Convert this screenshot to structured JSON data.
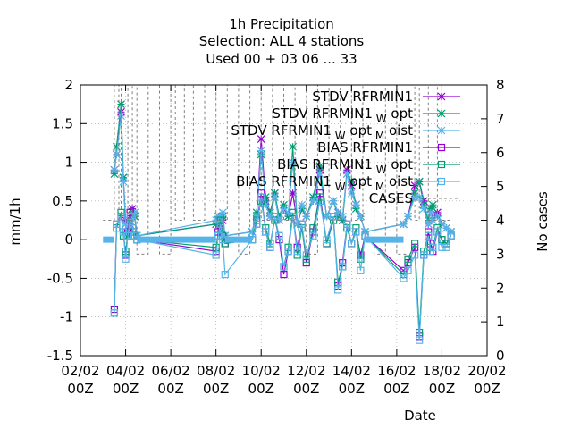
{
  "chart_data": {
    "type": "line",
    "title_lines": [
      "1h Precipitation",
      "Selection: ALL      4 stations",
      "Used  00 + 03 06 ... 33"
    ],
    "xlabel": "Date",
    "ylabel": "mm/1h",
    "y2label": "No cases",
    "xlim": [
      0,
      18
    ],
    "ylim": [
      -1.5,
      2
    ],
    "y2lim": [
      0,
      8
    ],
    "xticks": [
      {
        "v": 0,
        "l1": "02/02",
        "l2": "00Z"
      },
      {
        "v": 2,
        "l1": "04/02",
        "l2": "00Z"
      },
      {
        "v": 4,
        "l1": "06/02",
        "l2": "00Z"
      },
      {
        "v": 6,
        "l1": "08/02",
        "l2": "00Z"
      },
      {
        "v": 8,
        "l1": "10/02",
        "l2": "00Z"
      },
      {
        "v": 10,
        "l1": "12/02",
        "l2": "00Z"
      },
      {
        "v": 12,
        "l1": "14/02",
        "l2": "00Z"
      },
      {
        "v": 14,
        "l1": "16/02",
        "l2": "00Z"
      },
      {
        "v": 16,
        "l1": "18/02",
        "l2": "00Z"
      },
      {
        "v": 18,
        "l1": "20/02",
        "l2": "00Z"
      }
    ],
    "yticks": [
      {
        "v": -1.5,
        "l": "-1.5"
      },
      {
        "v": -1,
        "l": "-1"
      },
      {
        "v": -0.5,
        "l": "-0.5"
      },
      {
        "v": 0,
        "l": "0"
      },
      {
        "v": 0.5,
        "l": "0.5"
      },
      {
        "v": 1,
        "l": "1"
      },
      {
        "v": 1.5,
        "l": "1.5"
      },
      {
        "v": 2,
        "l": "2"
      }
    ],
    "y2ticks": [
      {
        "v": 0,
        "l": "0"
      },
      {
        "v": 1,
        "l": "1"
      },
      {
        "v": 2,
        "l": "2"
      },
      {
        "v": 3,
        "l": "3"
      },
      {
        "v": 4,
        "l": "4"
      },
      {
        "v": 5,
        "l": "5"
      },
      {
        "v": 6,
        "l": "6"
      },
      {
        "v": 7,
        "l": "7"
      },
      {
        "v": 8,
        "l": "8"
      }
    ],
    "legend_position": "top-right",
    "series": [
      {
        "name": "STDV RFRMIN1",
        "legend": [
          [
            "STDV RFRMIN1",
            ""
          ]
        ],
        "color": "#9400d3",
        "marker": "star",
        "axis": "y",
        "x": [
          1.5,
          1.6,
          1.8,
          1.9,
          2.0,
          2.1,
          2.2,
          2.3,
          2.4,
          2.5,
          6.0,
          6.1,
          6.2,
          6.3,
          6.4,
          7.6,
          7.8,
          8.0,
          8.2,
          8.4,
          8.6,
          8.8,
          9.0,
          9.2,
          9.4,
          9.6,
          9.8,
          10.0,
          10.3,
          10.6,
          10.9,
          11.2,
          11.4,
          11.6,
          11.8,
          12.0,
          12.2,
          12.4,
          12.6,
          14.3,
          14.5,
          14.8,
          15.0,
          15.2,
          15.4,
          15.5,
          15.6,
          15.8,
          16.0,
          16.2,
          16.4
        ],
        "y": [
          0.9,
          1.1,
          1.65,
          0.8,
          0.25,
          0.1,
          0.2,
          0.4,
          0.3,
          0.05,
          0.2,
          0.3,
          0.15,
          0.25,
          0.05,
          0.1,
          0.3,
          1.3,
          0.5,
          0.3,
          0.6,
          0.25,
          0.4,
          0.3,
          0.6,
          0.2,
          0.4,
          0.3,
          0.5,
          0.9,
          0.3,
          0.5,
          0.35,
          0.25,
          0.9,
          0.7,
          0.45,
          0.3,
          0.1,
          0.2,
          0.3,
          0.7,
          0.75,
          0.5,
          0.2,
          0.4,
          0.25,
          0.35,
          0.2,
          0.15,
          0.1
        ]
      },
      {
        "name": "STDV RFRMIN1 W opt",
        "legend": [
          [
            "STDV RFRMIN1",
            ""
          ],
          [
            " W",
            "sub"
          ],
          [
            " opt",
            ""
          ]
        ],
        "color": "#009e73",
        "marker": "star",
        "axis": "y",
        "x": [
          1.5,
          1.6,
          1.8,
          1.9,
          2.0,
          2.1,
          2.2,
          2.3,
          2.4,
          2.5,
          6.0,
          6.1,
          6.2,
          6.3,
          6.4,
          7.6,
          7.8,
          8.0,
          8.2,
          8.4,
          8.6,
          8.8,
          9.0,
          9.2,
          9.4,
          9.6,
          9.8,
          10.0,
          10.3,
          10.6,
          10.9,
          11.2,
          11.4,
          11.6,
          11.8,
          12.0,
          12.2,
          12.4,
          12.6,
          14.3,
          14.5,
          14.8,
          15.0,
          15.2,
          15.4,
          15.5,
          15.6,
          15.8,
          16.0,
          16.2,
          16.4
        ],
        "y": [
          0.85,
          1.2,
          1.75,
          0.8,
          0.2,
          0.05,
          0.25,
          0.35,
          0.3,
          0.05,
          0.2,
          0.25,
          0.1,
          0.3,
          0.05,
          0.1,
          0.35,
          1.1,
          0.55,
          0.35,
          0.6,
          0.3,
          0.45,
          0.3,
          1.2,
          0.2,
          0.4,
          0.3,
          0.55,
          0.95,
          0.3,
          0.5,
          0.3,
          0.25,
          0.85,
          0.75,
          0.4,
          0.3,
          0.1,
          0.2,
          0.3,
          0.6,
          0.75,
          0.45,
          0.25,
          0.4,
          0.45,
          0.3,
          0.2,
          0.15,
          0.1
        ]
      },
      {
        "name": "STDV RFRMIN1 W opt M oist",
        "legend": [
          [
            "STDV RFRMIN1",
            ""
          ],
          [
            " W",
            "sub"
          ],
          [
            " opt",
            ""
          ],
          [
            " M",
            "sub"
          ],
          [
            " oist",
            ""
          ]
        ],
        "color": "#56b4e9",
        "marker": "star",
        "axis": "y",
        "x": [
          1.5,
          1.6,
          1.8,
          1.9,
          2.0,
          2.1,
          2.2,
          2.3,
          2.4,
          2.5,
          6.0,
          6.1,
          6.2,
          6.3,
          6.4,
          7.6,
          7.8,
          8.0,
          8.2,
          8.4,
          8.6,
          8.8,
          9.0,
          9.2,
          9.4,
          9.6,
          9.8,
          10.0,
          10.3,
          10.6,
          10.9,
          11.2,
          11.4,
          11.6,
          11.8,
          12.0,
          12.2,
          12.4,
          12.6,
          14.3,
          14.5,
          14.8,
          15.0,
          15.2,
          15.4,
          15.5,
          15.6,
          15.8,
          16.0,
          16.2,
          16.4
        ],
        "y": [
          0.9,
          1.1,
          1.6,
          0.75,
          0.2,
          0.1,
          0.2,
          0.3,
          0.35,
          0.05,
          0.25,
          0.3,
          0.1,
          0.35,
          0.05,
          0.1,
          0.3,
          1.15,
          0.45,
          0.3,
          0.55,
          0.25,
          0.4,
          0.35,
          1.0,
          0.2,
          0.45,
          0.3,
          0.5,
          0.85,
          0.3,
          0.5,
          0.35,
          0.3,
          0.85,
          0.6,
          0.45,
          0.3,
          0.1,
          0.2,
          0.3,
          0.55,
          0.55,
          0.4,
          0.2,
          0.35,
          0.25,
          0.3,
          0.2,
          0.15,
          0.1
        ]
      },
      {
        "name": "BIAS RFRMIN1",
        "legend": [
          [
            "BIAS RFRMIN1",
            ""
          ]
        ],
        "color": "#9400d3",
        "marker": "square",
        "axis": "y",
        "x": [
          1.5,
          1.6,
          1.8,
          1.9,
          2.0,
          2.1,
          2.2,
          2.3,
          2.4,
          2.5,
          6.0,
          6.1,
          6.2,
          6.3,
          6.4,
          7.6,
          7.8,
          8.0,
          8.2,
          8.4,
          8.6,
          8.8,
          9.0,
          9.2,
          9.4,
          9.6,
          9.8,
          10.0,
          10.3,
          10.6,
          10.9,
          11.2,
          11.4,
          11.6,
          11.8,
          12.0,
          12.2,
          12.4,
          12.6,
          14.3,
          14.5,
          14.8,
          15.0,
          15.2,
          15.4,
          15.5,
          15.6,
          15.8,
          16.0,
          16.2,
          16.4
        ],
        "y": [
          -0.9,
          0.2,
          0.3,
          0.1,
          -0.2,
          0.1,
          0.35,
          0.15,
          0.05,
          0.0,
          -0.15,
          0.1,
          0.2,
          0.05,
          -0.05,
          0.0,
          0.2,
          0.6,
          0.1,
          -0.1,
          0.3,
          0.0,
          -0.45,
          -0.15,
          0.3,
          -0.1,
          0.2,
          -0.3,
          0.1,
          0.6,
          -0.05,
          0.3,
          -0.6,
          -0.3,
          0.2,
          -0.05,
          0.1,
          -0.2,
          0.05,
          -0.4,
          -0.3,
          -0.1,
          -1.25,
          -0.2,
          0.1,
          -0.05,
          -0.15,
          0.1,
          0.0,
          -0.05,
          0.05
        ]
      },
      {
        "name": "BIAS RFRMIN1 W opt",
        "legend": [
          [
            "BIAS RFRMIN1",
            ""
          ],
          [
            " W",
            "sub"
          ],
          [
            " opt",
            ""
          ]
        ],
        "color": "#009e73",
        "marker": "square",
        "axis": "y",
        "x": [
          1.5,
          1.6,
          1.8,
          1.9,
          2.0,
          2.1,
          2.2,
          2.3,
          2.4,
          2.5,
          6.0,
          6.1,
          6.2,
          6.3,
          6.4,
          7.6,
          7.8,
          8.0,
          8.2,
          8.4,
          8.6,
          8.8,
          9.0,
          9.2,
          9.4,
          9.6,
          9.8,
          10.0,
          10.3,
          10.6,
          10.9,
          11.2,
          11.4,
          11.6,
          11.8,
          12.0,
          12.2,
          12.4,
          12.6,
          14.3,
          14.5,
          14.8,
          15.0,
          15.2,
          15.4,
          15.5,
          15.6,
          15.8,
          16.0,
          16.2,
          16.4
        ],
        "y": [
          -0.95,
          0.15,
          0.35,
          0.05,
          -0.15,
          0.05,
          0.3,
          0.1,
          0.05,
          0.0,
          -0.1,
          0.05,
          0.25,
          0.05,
          -0.05,
          0.0,
          0.25,
          0.5,
          0.15,
          -0.05,
          0.25,
          0.05,
          -0.35,
          -0.1,
          0.35,
          -0.2,
          0.15,
          -0.25,
          0.15,
          0.55,
          -0.05,
          0.25,
          -0.55,
          -0.35,
          0.15,
          -0.05,
          0.15,
          -0.25,
          0.05,
          -0.45,
          -0.25,
          -0.05,
          -1.2,
          -0.15,
          0.05,
          -0.1,
          -0.1,
          0.15,
          0.0,
          -0.05,
          0.05
        ]
      },
      {
        "name": "BIAS RFRMIN1 W opt M oist",
        "legend": [
          [
            "BIAS RFRMIN1",
            ""
          ],
          [
            " W",
            "sub"
          ],
          [
            " opt",
            ""
          ],
          [
            " M",
            "sub"
          ],
          [
            " oist",
            ""
          ]
        ],
        "color": "#56b4e9",
        "marker": "square",
        "axis": "y",
        "x": [
          1.5,
          1.6,
          1.8,
          1.9,
          2.0,
          2.1,
          2.2,
          2.3,
          2.4,
          2.5,
          6.0,
          6.1,
          6.2,
          6.3,
          6.4,
          7.6,
          7.8,
          8.0,
          8.2,
          8.4,
          8.6,
          8.8,
          9.0,
          9.2,
          9.4,
          9.6,
          9.8,
          10.0,
          10.3,
          10.6,
          10.9,
          11.2,
          11.4,
          11.6,
          11.8,
          12.0,
          12.2,
          12.4,
          12.6,
          14.3,
          14.5,
          14.8,
          15.0,
          15.2,
          15.4,
          15.5,
          15.6,
          15.8,
          16.0,
          16.2,
          16.4
        ],
        "y": [
          -0.95,
          0.2,
          0.3,
          0.1,
          -0.25,
          0.05,
          0.3,
          0.15,
          0.05,
          0.0,
          -0.2,
          0.05,
          0.2,
          0.0,
          -0.45,
          0.0,
          0.2,
          0.55,
          0.1,
          -0.1,
          0.3,
          0.05,
          -0.35,
          -0.15,
          0.3,
          -0.15,
          0.2,
          -0.2,
          0.05,
          0.5,
          0.0,
          0.3,
          -0.65,
          -0.35,
          0.2,
          -0.05,
          0.1,
          -0.4,
          0.05,
          -0.5,
          -0.4,
          -0.2,
          -1.3,
          -0.2,
          0.05,
          -0.15,
          -0.1,
          0.1,
          -0.1,
          -0.1,
          0.05
        ]
      },
      {
        "name": "CASES",
        "legend": [
          [
            "CASES",
            ""
          ]
        ],
        "color": "#808080",
        "marker": "none",
        "dash": "3,3",
        "axis": "y2",
        "x": [
          1.0,
          1.5,
          1.5,
          1.7,
          1.7,
          1.8,
          1.8,
          2.1,
          2.1,
          2.3,
          2.3,
          2.5,
          2.5,
          3.0,
          3.0,
          3.5,
          3.5,
          4.0,
          4.0,
          4.2,
          4.2,
          4.6,
          4.6,
          5.0,
          5.0,
          5.5,
          5.5,
          6.0,
          6.0,
          6.5,
          6.5,
          7.0,
          7.0,
          7.5,
          7.5,
          8.0,
          8.0,
          8.5,
          8.5,
          9.0,
          9.0,
          9.5,
          9.5,
          10.0,
          10.0,
          10.5,
          10.5,
          11.0,
          11.0,
          11.5,
          11.5,
          12.0,
          12.0,
          12.5,
          12.5,
          13.0,
          13.0,
          13.5,
          13.5,
          14.0,
          14.0,
          14.5,
          14.5,
          14.8,
          14.8,
          15.0,
          15.0,
          15.4,
          15.4,
          15.8,
          15.8,
          16.0,
          16.0,
          16.4
        ],
        "y": [
          4,
          4,
          8,
          8,
          4,
          4,
          8,
          8,
          4,
          4,
          8,
          8,
          3,
          3,
          8,
          8,
          3,
          3,
          8,
          8,
          4,
          4,
          8,
          8,
          4,
          4,
          8,
          8,
          4,
          4,
          8,
          8,
          3,
          3,
          8,
          8,
          4,
          4,
          8,
          8,
          4,
          4,
          8,
          8,
          3,
          3,
          8,
          8,
          4,
          4,
          8,
          8,
          4,
          4,
          8,
          8,
          3,
          3,
          8,
          8,
          3,
          3,
          8,
          8,
          4,
          4,
          8,
          8,
          4,
          4,
          8,
          8,
          4,
          4
        ]
      }
    ]
  }
}
